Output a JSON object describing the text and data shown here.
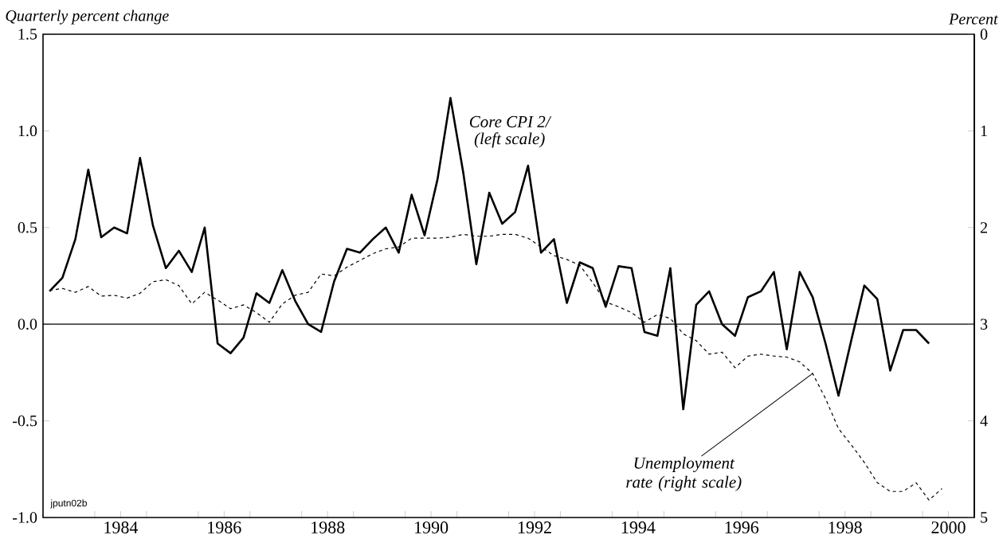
{
  "chart_data": {
    "type": "line",
    "ylabel": "Quarterly percent change",
    "y2label": "Percent",
    "xlim": [
      1983,
      2001
    ],
    "xticks": [
      {
        "value": 1983,
        "label": null
      },
      {
        "value": 1984,
        "label": null
      },
      {
        "value": 1984.5,
        "label": "1984"
      },
      {
        "value": 1985,
        "label": null
      },
      {
        "value": 1986,
        "label": null
      },
      {
        "value": 1986.5,
        "label": "1986"
      },
      {
        "value": 1987,
        "label": null
      },
      {
        "value": 1988,
        "label": null
      },
      {
        "value": 1988.5,
        "label": "1988"
      },
      {
        "value": 1989,
        "label": null
      },
      {
        "value": 1990,
        "label": null
      },
      {
        "value": 1990.5,
        "label": "1990"
      },
      {
        "value": 1991,
        "label": null
      },
      {
        "value": 1992,
        "label": null
      },
      {
        "value": 1992.5,
        "label": "1992"
      },
      {
        "value": 1993,
        "label": null
      },
      {
        "value": 1994,
        "label": null
      },
      {
        "value": 1994.5,
        "label": "1994"
      },
      {
        "value": 1995,
        "label": null
      },
      {
        "value": 1996,
        "label": null
      },
      {
        "value": 1996.5,
        "label": "1996"
      },
      {
        "value": 1997,
        "label": null
      },
      {
        "value": 1998,
        "label": null
      },
      {
        "value": 1998.5,
        "label": "1998"
      },
      {
        "value": 1999,
        "label": null
      },
      {
        "value": 2000,
        "label": null
      },
      {
        "value": 2000.5,
        "label": "2000"
      },
      {
        "value": 2001,
        "label": null
      }
    ],
    "ylim": [
      -1.0,
      1.5
    ],
    "yticks": [
      {
        "value": -1.0,
        "label": "-1.0"
      },
      {
        "value": -0.5,
        "label": "-0.5"
      },
      {
        "value": 0.0,
        "label": "0.0"
      },
      {
        "value": 0.5,
        "label": "0.5"
      },
      {
        "value": 1.0,
        "label": "1.0"
      },
      {
        "value": 1.5,
        "label": "1.5"
      }
    ],
    "y2lim": [
      5,
      0
    ],
    "y2ticks": [
      0,
      1,
      2,
      3,
      4,
      5
    ],
    "marker": "none",
    "ref_lines": [
      {
        "axis": "y",
        "value": 0,
        "label": null
      }
    ],
    "annotations": [
      "Core CPI 2/",
      "(left scale)",
      {
        "text": "Unemployment rate (right scale)",
        "x": 1997.875,
        "y": -0.255
      },
      "jputn02b"
    ],
    "series": [
      {
        "color": "#000000",
        "line_style": "solid",
        "x": [
          1983.125,
          1983.375,
          1983.625,
          1983.875,
          1984.125,
          1984.375,
          1984.625,
          1984.875,
          1985.125,
          1985.375,
          1985.625,
          1985.875,
          1986.125,
          1986.375,
          1986.625,
          1986.875,
          1987.125,
          1987.375,
          1987.625,
          1987.875,
          1988.125,
          1988.375,
          1988.625,
          1988.875,
          1989.125,
          1989.375,
          1989.625,
          1989.875,
          1990.125,
          1990.375,
          1990.625,
          1990.875,
          1991.125,
          1991.375,
          1991.625,
          1991.875,
          1992.125,
          1992.375,
          1992.625,
          1992.875,
          1993.125,
          1993.375,
          1993.625,
          1993.875,
          1994.125,
          1994.375,
          1994.625,
          1994.875,
          1995.125,
          1995.375,
          1995.625,
          1995.875,
          1996.125,
          1996.375,
          1996.625,
          1996.875,
          1997.125,
          1997.375,
          1997.625,
          1997.875,
          1998.125,
          1998.375,
          1998.625,
          1998.875,
          1999.125,
          1999.375,
          1999.625,
          1999.875,
          2000.125
        ],
        "values": [
          0.17,
          0.24,
          0.44,
          0.8,
          0.45,
          0.5,
          0.47,
          0.86,
          0.51,
          0.29,
          0.38,
          0.27,
          0.5,
          -0.1,
          -0.15,
          -0.07,
          0.16,
          0.11,
          0.28,
          0.12,
          0.0,
          -0.04,
          0.22,
          0.39,
          0.37,
          0.44,
          0.5,
          0.37,
          0.67,
          0.46,
          0.75,
          1.17,
          0.78,
          0.31,
          0.68,
          0.52,
          0.58,
          0.82,
          0.37,
          0.44,
          0.11,
          0.32,
          0.29,
          0.09,
          0.3,
          0.29,
          -0.04,
          -0.06,
          0.29,
          -0.44,
          0.1,
          0.17,
          0.0,
          -0.06,
          0.14,
          0.17,
          0.27,
          -0.13,
          0.27,
          0.14,
          -0.1,
          -0.37,
          -0.08,
          0.2,
          0.13,
          -0.24,
          -0.03,
          -0.03,
          -0.1
        ]
      },
      {
        "color": "#000000",
        "line_style": "dashed",
        "axis": "y2",
        "x": [
          1983.125,
          1983.375,
          1983.625,
          1983.875,
          1984.125,
          1984.375,
          1984.625,
          1984.875,
          1985.125,
          1985.375,
          1985.625,
          1985.875,
          1986.125,
          1986.375,
          1986.625,
          1986.875,
          1987.125,
          1987.375,
          1987.625,
          1987.875,
          1988.125,
          1988.375,
          1988.625,
          1988.875,
          1989.125,
          1989.375,
          1989.625,
          1989.875,
          1990.125,
          1990.375,
          1990.625,
          1990.875,
          1991.125,
          1991.375,
          1991.625,
          1991.875,
          1992.125,
          1992.375,
          1992.625,
          1992.875,
          1993.125,
          1993.375,
          1993.625,
          1993.875,
          1994.125,
          1994.375,
          1994.625,
          1994.875,
          1995.125,
          1995.375,
          1995.625,
          1995.875,
          1996.125,
          1996.375,
          1996.625,
          1996.875,
          1997.125,
          1997.375,
          1997.625,
          1997.875,
          1998.125,
          1998.375,
          1998.625,
          1998.875,
          1999.125,
          1999.375,
          1999.625,
          1999.875,
          2000.125,
          2000.375
        ],
        "values": [
          2.65,
          2.63,
          2.67,
          2.61,
          2.71,
          2.7,
          2.73,
          2.68,
          2.56,
          2.54,
          2.6,
          2.79,
          2.67,
          2.75,
          2.84,
          2.8,
          2.88,
          2.98,
          2.79,
          2.7,
          2.67,
          2.48,
          2.5,
          2.41,
          2.34,
          2.27,
          2.22,
          2.2,
          2.11,
          2.11,
          2.11,
          2.1,
          2.07,
          2.09,
          2.09,
          2.07,
          2.07,
          2.11,
          2.2,
          2.29,
          2.33,
          2.39,
          2.57,
          2.77,
          2.82,
          2.88,
          2.98,
          2.9,
          2.94,
          3.1,
          3.17,
          3.31,
          3.29,
          3.45,
          3.33,
          3.31,
          3.33,
          3.34,
          3.39,
          3.51,
          3.77,
          4.08,
          4.25,
          4.43,
          4.64,
          4.73,
          4.73,
          4.64,
          4.82,
          4.7
        ]
      }
    ]
  }
}
